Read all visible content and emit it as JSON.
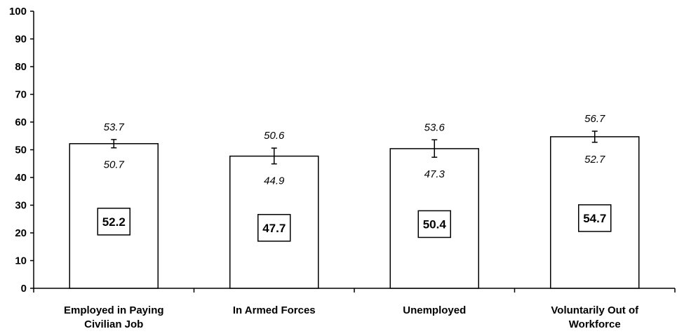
{
  "chart_data": {
    "type": "bar",
    "title": "",
    "xlabel": "",
    "ylabel": "",
    "ylim": [
      0,
      100
    ],
    "yticks": [
      0,
      10,
      20,
      30,
      40,
      50,
      60,
      70,
      80,
      90,
      100
    ],
    "grid": false,
    "categories": [
      [
        "Employed in Paying",
        "Civilian Job"
      ],
      [
        "In Armed Forces"
      ],
      [
        "Unemployed"
      ],
      [
        "Voluntarily Out of",
        "Workforce"
      ]
    ],
    "values": [
      52.2,
      47.7,
      50.4,
      54.7
    ],
    "value_labels": [
      "52.2",
      "47.7",
      "50.4",
      "54.7"
    ],
    "ci_upper": [
      53.7,
      50.6,
      53.6,
      56.7
    ],
    "ci_lower": [
      50.7,
      44.9,
      47.3,
      52.7
    ],
    "ci_upper_labels": [
      "53.7",
      "50.6",
      "53.6",
      "56.7"
    ],
    "ci_lower_labels": [
      "50.7",
      "44.9",
      "47.3",
      "52.7"
    ]
  }
}
